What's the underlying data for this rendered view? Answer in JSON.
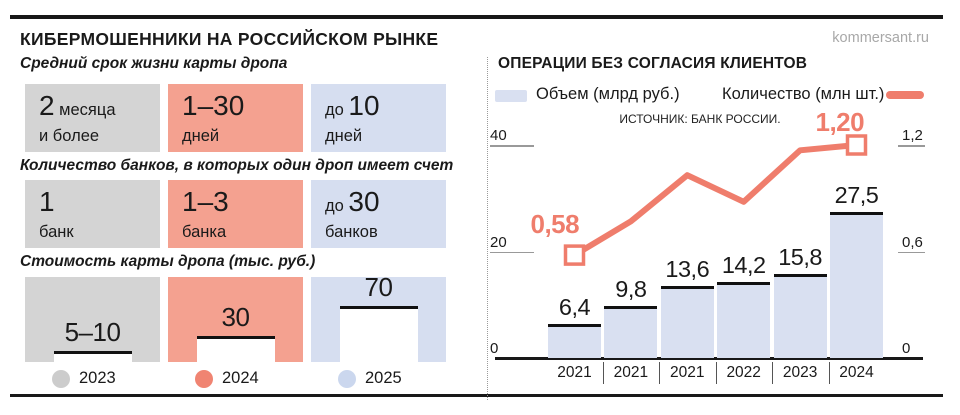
{
  "header": {
    "title": "КИБЕРМОШЕННИКИ НА РОССИЙСКОМ РЫНКЕ",
    "brand": "kommersant.ru"
  },
  "left_panel": {
    "column_years": [
      "2023",
      "2024",
      "2025"
    ],
    "column_colors": [
      "#D4D4D4",
      "#F4A190",
      "#D6DEF0"
    ],
    "sections": [
      {
        "label": "Средний срок жизни карты дропа",
        "boxes": [
          {
            "big": "2",
            "post": " месяца",
            "line2": "и более"
          },
          {
            "big": "1–30",
            "line2": "дней"
          },
          {
            "pre": "до ",
            "big": "10",
            "line2": "дней"
          }
        ]
      },
      {
        "label": "Количество банков, в которых один дроп имеет счет",
        "boxes": [
          {
            "big": "1",
            "line2": "банк"
          },
          {
            "big": "1–3",
            "line2": "банка"
          },
          {
            "pre": "до ",
            "big": "30",
            "line2": "банков"
          }
        ]
      },
      {
        "label": "Стоимость карты дропа (тыс. руб.)",
        "boxes": [
          {
            "value_label": "5–10",
            "value": 10
          },
          {
            "value_label": "30",
            "value": 30
          },
          {
            "value_label": "70",
            "value": 70
          }
        ]
      }
    ],
    "legend": [
      {
        "label": "2023",
        "color": "#CCCCCC"
      },
      {
        "label": "2024",
        "color": "#F08472"
      },
      {
        "label": "2025",
        "color": "#CBD7EE"
      }
    ]
  },
  "chart_data": {
    "type": "bar+line",
    "title": "ОПЕРАЦИИ БЕЗ СОГЛАСИЯ КЛИЕНТОВ",
    "source": "ИСТОЧНИК: БАНК РОССИИ.",
    "categories": [
      "2021",
      "2021",
      "2021",
      "2022",
      "2023",
      "2024"
    ],
    "series": [
      {
        "name": "Объем (млрд руб.)",
        "type": "bar",
        "axis": "left",
        "color": "#D9E0F1",
        "values": [
          6.4,
          9.8,
          13.6,
          14.2,
          15.8,
          27.5
        ],
        "value_labels": [
          "6,4",
          "9,8",
          "13,6",
          "14,2",
          "15,8",
          "27,5"
        ]
      },
      {
        "name": "Количество (млн шт.)",
        "type": "line",
        "axis": "right",
        "color": "#EF7D6C",
        "values": [
          0.58,
          0.77,
          1.03,
          0.88,
          1.17,
          1.2
        ],
        "labeled_points": {
          "0": "0,58",
          "5": "1,20"
        }
      }
    ],
    "left_axis": {
      "tick_values": [
        0,
        20,
        40
      ],
      "tick_labels": [
        "0",
        "20",
        "40"
      ],
      "max": 40
    },
    "right_axis": {
      "tick_values": [
        0,
        0.6,
        1.2
      ],
      "tick_labels": [
        "0",
        "0,6",
        "1,2"
      ],
      "max": 1.2
    },
    "legend_position": "top",
    "grid": false
  }
}
